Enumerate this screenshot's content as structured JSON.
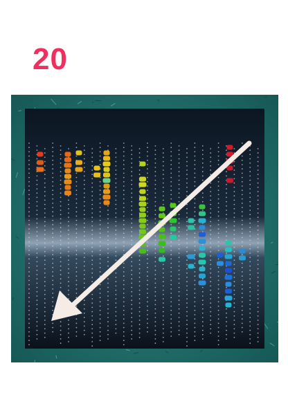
{
  "number_label": "20",
  "colors": {
    "number_label": "#ef2f5f",
    "frame_teal": "#1f6f6c",
    "panel_dark": "#0b1420",
    "arrow": "#f6ece6"
  }
}
